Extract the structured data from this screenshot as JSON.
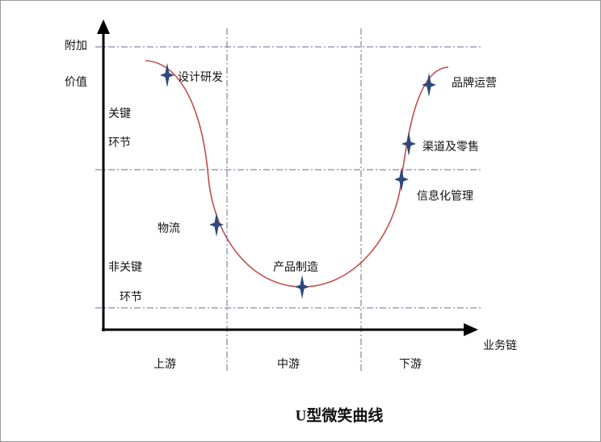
{
  "title": "U型微笑曲线",
  "y_axis_label": {
    "lines": [
      "附加",
      "价值"
    ]
  },
  "x_axis_label": "业务链",
  "zones": [
    {
      "lines": [
        "关键",
        "环节"
      ]
    },
    {
      "lines": [
        "非关键",
        "环节"
      ]
    }
  ],
  "stages": [
    "上游",
    "中游",
    "下游"
  ],
  "points": [
    "设计研发",
    "物流",
    "产品制造",
    "信息化管理",
    "渠道及零售",
    "品牌运营"
  ]
}
